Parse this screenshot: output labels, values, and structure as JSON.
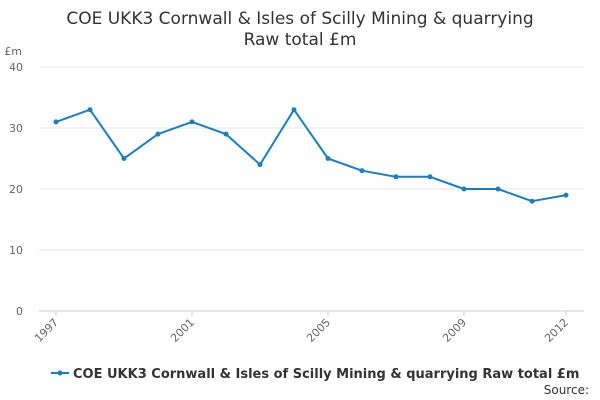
{
  "chart_data": {
    "type": "line",
    "title_lines": [
      "COE UKK3 Cornwall & Isles of Scilly Mining & quarrying",
      "Raw total £m"
    ],
    "y_unit": "£m",
    "ylim": [
      0,
      40
    ],
    "y_ticks": [
      0,
      10,
      20,
      30,
      40
    ],
    "x_ticks": [
      1997,
      2001,
      2005,
      2009,
      2012
    ],
    "grid": "horizontal",
    "legend_position": "bottom",
    "color": "#1a7fc0",
    "series": [
      {
        "name": "COE UKK3 Cornwall & Isles of Scilly Mining & quarrying Raw total £m",
        "x": [
          1997,
          1998,
          1999,
          2000,
          2001,
          2002,
          2003,
          2004,
          2005,
          2006,
          2007,
          2008,
          2009,
          2010,
          2011,
          2012
        ],
        "values": [
          31,
          33,
          25,
          29,
          31,
          29,
          24,
          33,
          25,
          23,
          22,
          22,
          20,
          20,
          18,
          19
        ]
      }
    ],
    "source_label": "Source:"
  }
}
